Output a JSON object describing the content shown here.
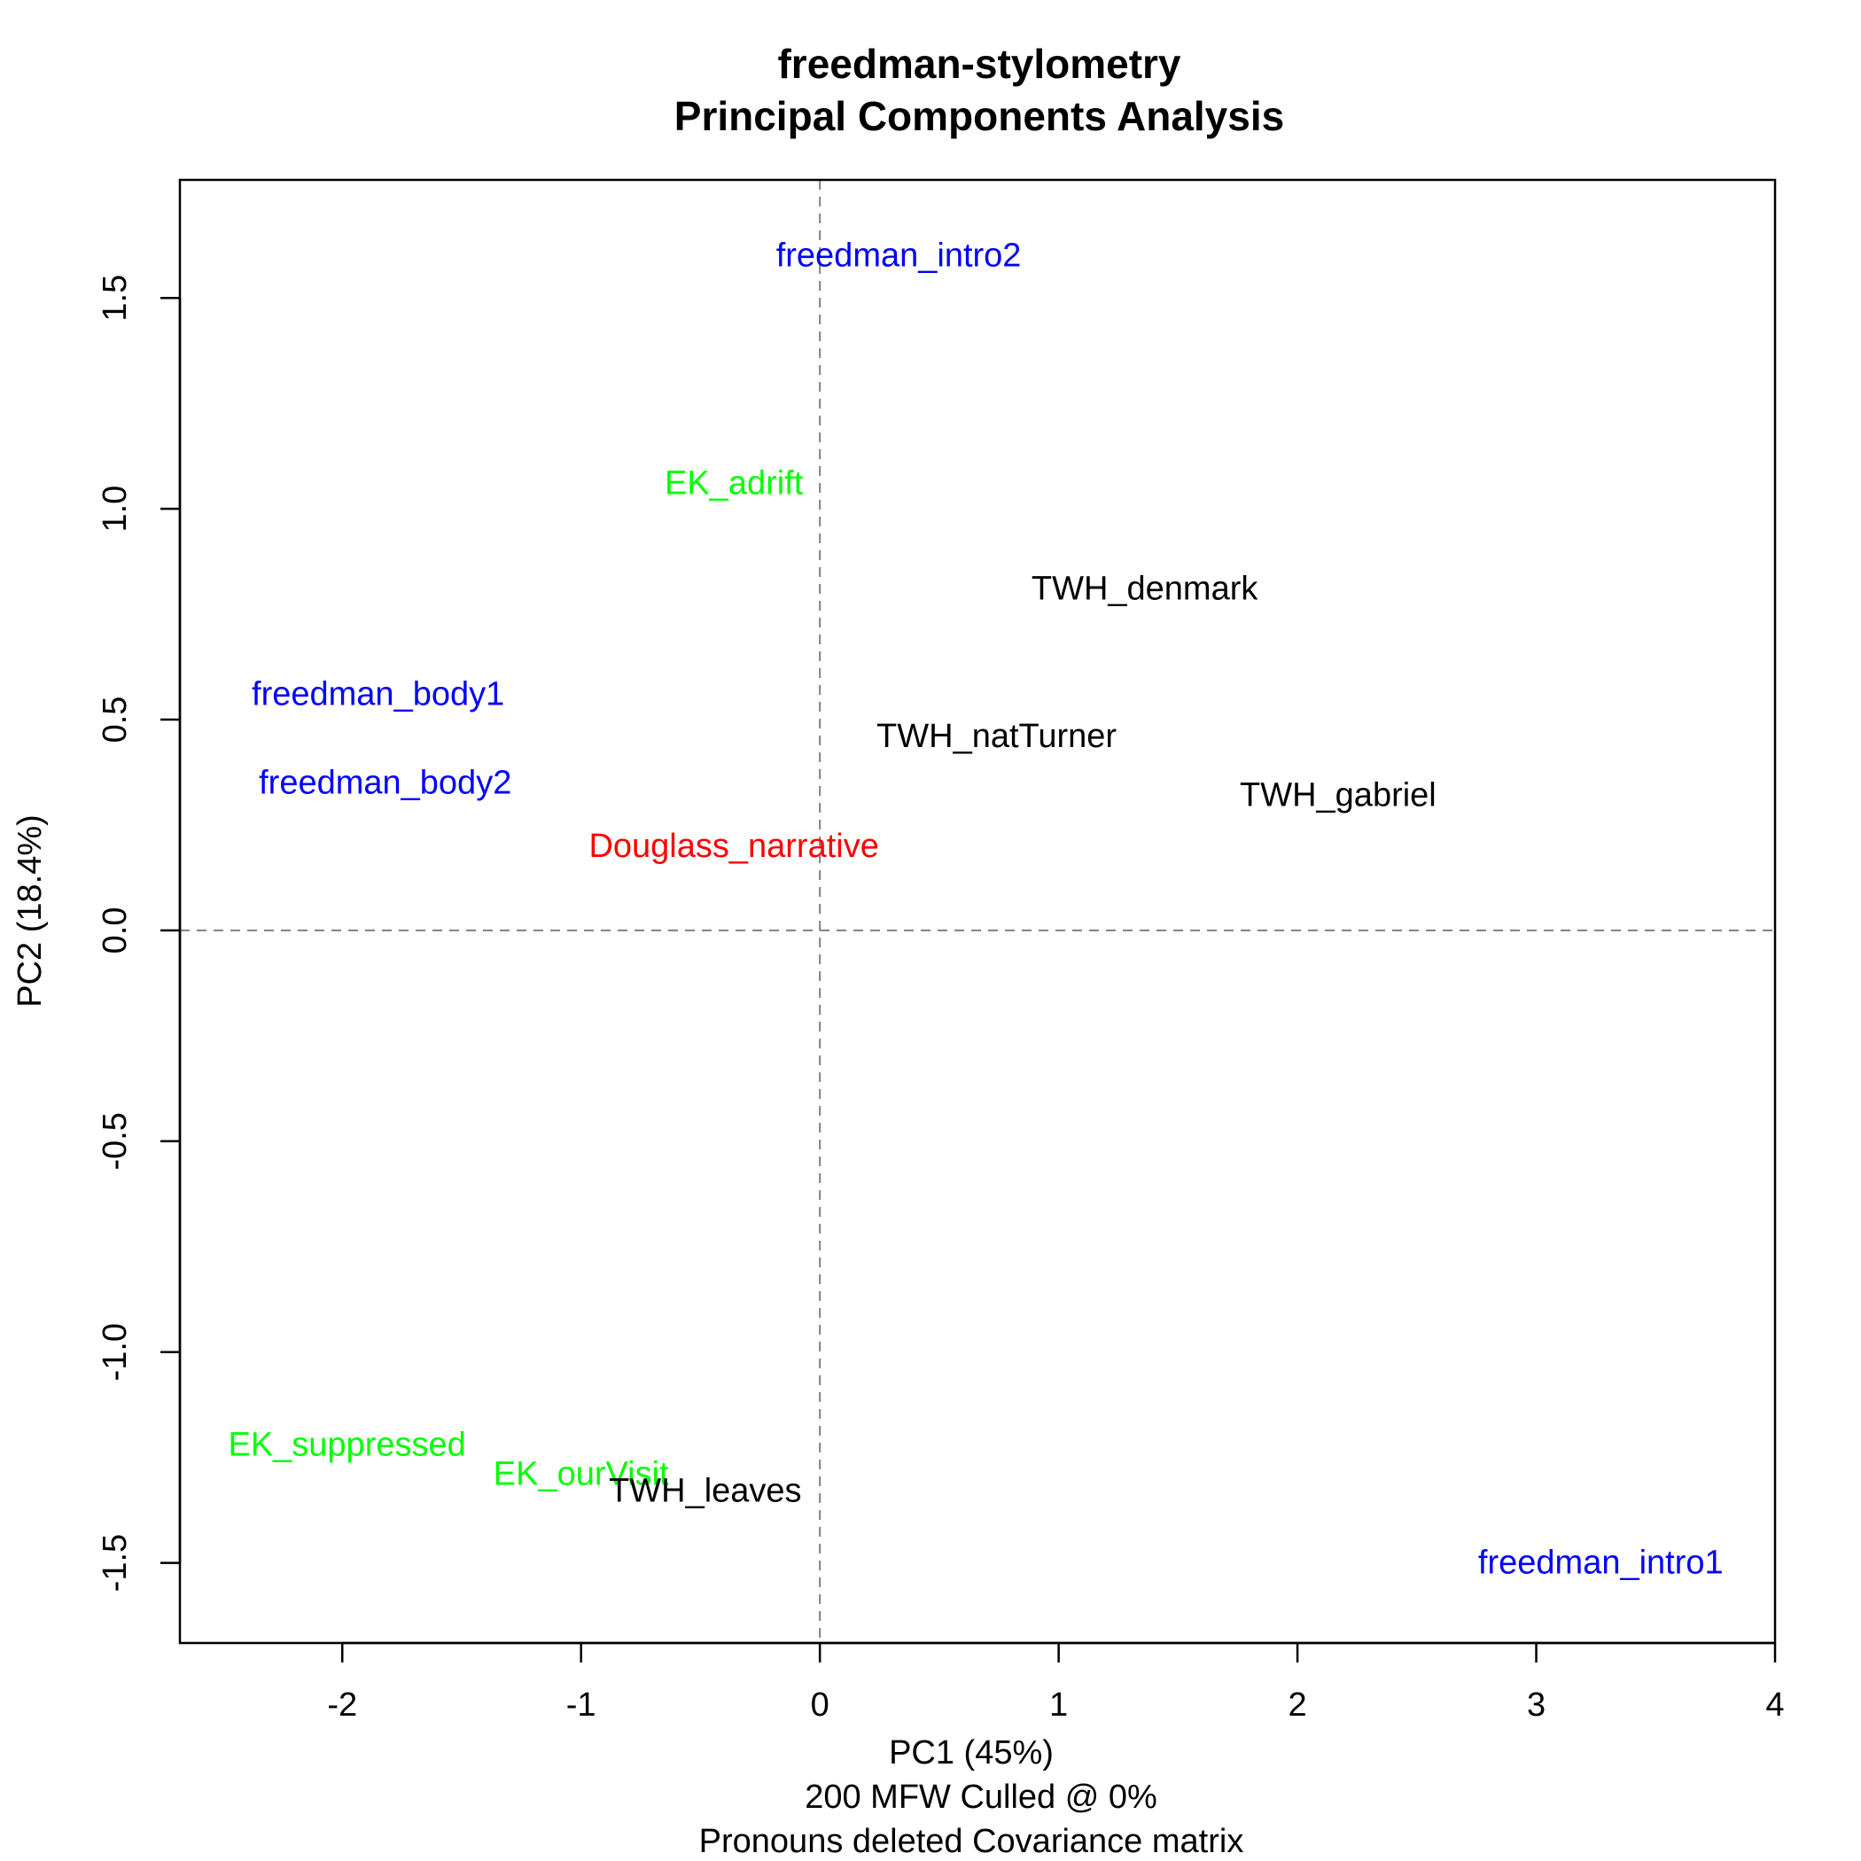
{
  "chart_data": {
    "type": "scatter",
    "title": "freedman-stylometry",
    "subtitle": "Principal Components Analysis",
    "xlabel": "PC1 (45%)",
    "ylabel": "PC2 (18.4%)",
    "xlabel_sub": [
      "200 MFW  Culled @ 0%",
      "Pronouns deleted Covariance matrix"
    ],
    "xlim": [
      -2.68,
      4.0
    ],
    "ylim": [
      -1.69,
      1.78
    ],
    "x_ticks": [
      -2,
      -1,
      0,
      1,
      2,
      3,
      4
    ],
    "x_tick_labels": [
      "-2",
      "-1",
      "0",
      "1",
      "2",
      "3",
      "4"
    ],
    "y_ticks": [
      -1.5,
      -1.0,
      -0.5,
      0.0,
      0.5,
      1.0,
      1.5
    ],
    "y_tick_labels": [
      "-1.5",
      "-1.0",
      "-0.5",
      "0.0",
      "0.5",
      "1.0",
      "1.5"
    ],
    "reference_lines": {
      "x": 0,
      "y": 0,
      "style": "dashed",
      "color": "#808080"
    },
    "grid": false,
    "points": [
      {
        "label": "freedman_intro2",
        "x": 0.33,
        "y": 1.6,
        "color": "#0000ff"
      },
      {
        "label": "EK_adrift",
        "x": -0.36,
        "y": 1.06,
        "color": "#00ff00"
      },
      {
        "label": "TWH_denmark",
        "x": 1.36,
        "y": 0.81,
        "color": "#000000"
      },
      {
        "label": "freedman_body1",
        "x": -1.85,
        "y": 0.56,
        "color": "#0000ff"
      },
      {
        "label": "TWH_natTurner",
        "x": 0.74,
        "y": 0.46,
        "color": "#000000"
      },
      {
        "label": "freedman_body2",
        "x": -1.82,
        "y": 0.35,
        "color": "#0000ff"
      },
      {
        "label": "TWH_gabriel",
        "x": 2.17,
        "y": 0.32,
        "color": "#000000"
      },
      {
        "label": "Douglass_narrative",
        "x": -0.36,
        "y": 0.2,
        "color": "#ff0000"
      },
      {
        "label": "EK_suppressed",
        "x": -1.98,
        "y": -1.22,
        "color": "#00ff00"
      },
      {
        "label": "EK_ourVisit",
        "x": -1.0,
        "y": -1.29,
        "color": "#00ff00"
      },
      {
        "label": "TWH_leaves",
        "x": -0.48,
        "y": -1.33,
        "color": "#000000"
      },
      {
        "label": "freedman_intro1",
        "x": 3.27,
        "y": -1.5,
        "color": "#0000ff"
      }
    ]
  }
}
